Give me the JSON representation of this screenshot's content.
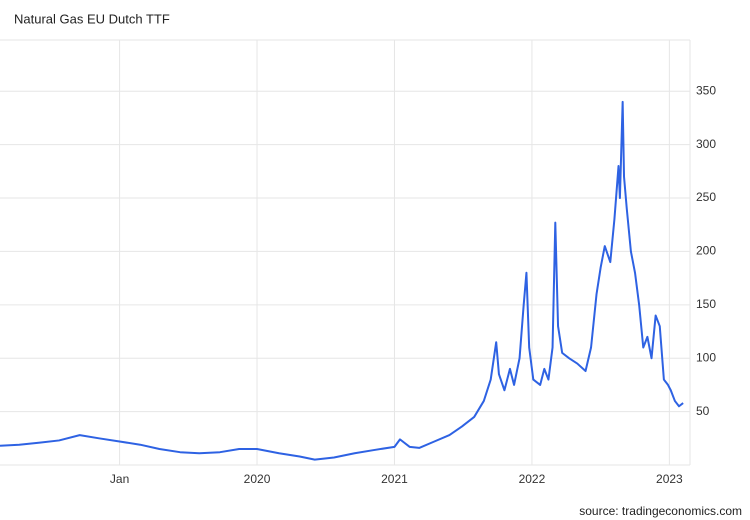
{
  "chart_data": {
    "type": "line",
    "title": "Natural Gas EU Dutch TTF",
    "source": "source: tradingeconomics.com",
    "color": "#2e62e3",
    "grid": true,
    "xlim": [
      2018.13,
      2023.15
    ],
    "ylim": [
      0,
      398
    ],
    "xticks": [
      {
        "value": 2019,
        "label": "Jan"
      },
      2020,
      2021,
      2022,
      2023
    ],
    "yticks": [
      50,
      100,
      150,
      200,
      250,
      300,
      350
    ],
    "x": [
      2018.13,
      2018.27,
      2018.42,
      2018.56,
      2018.71,
      2018.85,
      2019.0,
      2019.15,
      2019.29,
      2019.44,
      2019.58,
      2019.73,
      2019.87,
      2020.0,
      2020.16,
      2020.31,
      2020.42,
      2020.56,
      2020.71,
      2020.85,
      2021.0,
      2021.04,
      2021.11,
      2021.18,
      2021.29,
      2021.4,
      2021.49,
      2021.58,
      2021.65,
      2021.7,
      2021.74,
      2021.76,
      2021.8,
      2021.84,
      2021.87,
      2021.91,
      2021.94,
      2021.96,
      2021.98,
      2022.01,
      2022.06,
      2022.09,
      2022.12,
      2022.15,
      2022.17,
      2022.19,
      2022.22,
      2022.27,
      2022.33,
      2022.39,
      2022.43,
      2022.47,
      2022.5,
      2022.53,
      2022.57,
      2022.6,
      2022.63,
      2022.64,
      2022.66,
      2022.67,
      2022.69,
      2022.72,
      2022.75,
      2022.78,
      2022.81,
      2022.84,
      2022.87,
      2022.9,
      2022.93,
      2022.96,
      2022.99,
      2023.01,
      2023.04,
      2023.07,
      2023.1
    ],
    "values": [
      18,
      19,
      21,
      23,
      28,
      25,
      22,
      19,
      15,
      12,
      11,
      12,
      15,
      15,
      11,
      8,
      5,
      7,
      11,
      14,
      17,
      24,
      17,
      16,
      22,
      28,
      36,
      45,
      60,
      80,
      115,
      85,
      70,
      90,
      75,
      100,
      150,
      180,
      110,
      80,
      75,
      90,
      80,
      110,
      227,
      130,
      105,
      100,
      95,
      88,
      110,
      160,
      185,
      205,
      190,
      230,
      280,
      250,
      340,
      270,
      240,
      200,
      180,
      150,
      110,
      120,
      100,
      140,
      130,
      80,
      75,
      70,
      60,
      55,
      58
    ]
  }
}
